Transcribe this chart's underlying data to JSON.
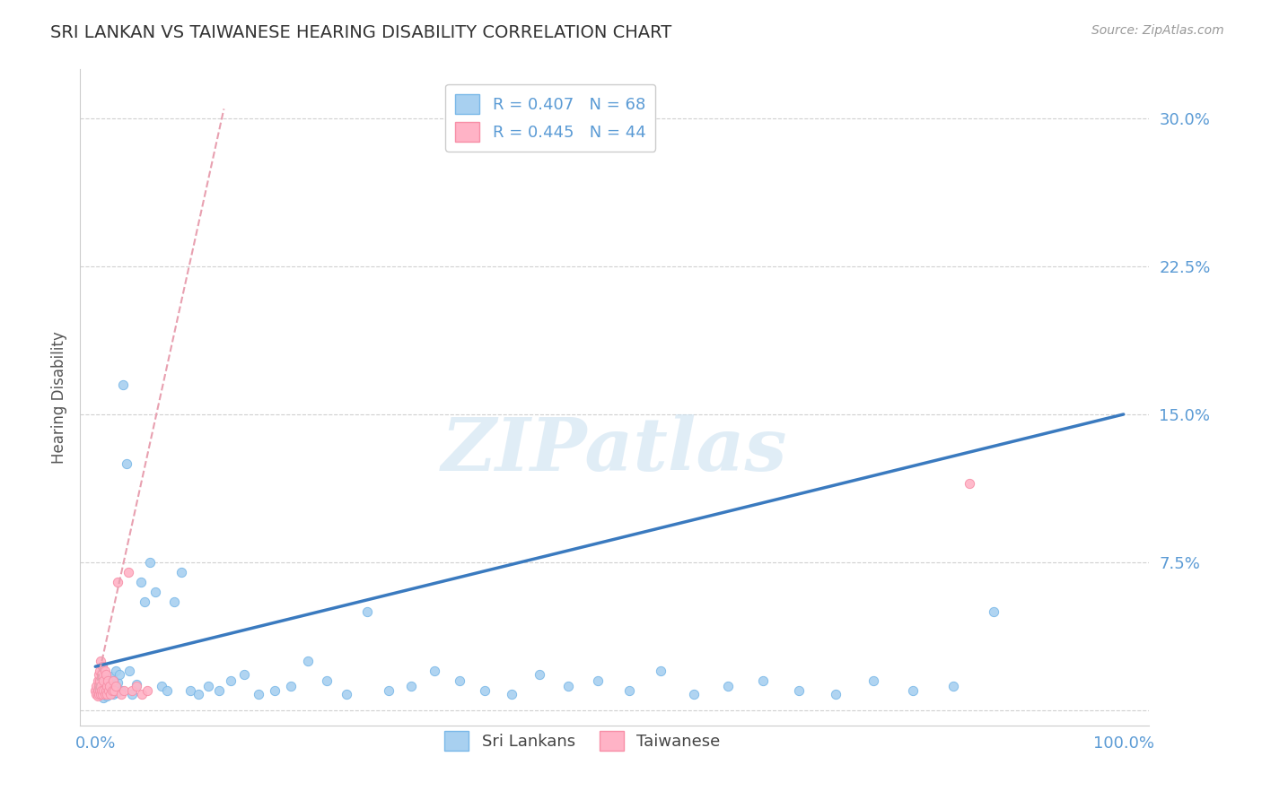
{
  "title": "SRI LANKAN VS TAIWANESE HEARING DISABILITY CORRELATION CHART",
  "source": "Source: ZipAtlas.com",
  "ylabel": "Hearing Disability",
  "legend_r1": "R = 0.407",
  "legend_n1": "N = 68",
  "legend_r2": "R = 0.445",
  "legend_n2": "N = 44",
  "color_blue_fill": "#a8d0f0",
  "color_blue_edge": "#7ab8e8",
  "color_pink_fill": "#ffb3c6",
  "color_pink_edge": "#f78fa7",
  "color_blue_line": "#3a7abf",
  "color_pink_line": "#e8a0b0",
  "color_axis_text": "#5b9bd5",
  "color_grid": "#d0d0d0",
  "color_title": "#333333",
  "color_source": "#999999",
  "color_watermark": "#c8dff0",
  "ytick_vals": [
    0.0,
    0.075,
    0.15,
    0.225,
    0.3
  ],
  "ytick_labels": [
    "",
    "7.5%",
    "15.0%",
    "22.5%",
    "30.0%"
  ],
  "ylim": [
    -0.008,
    0.325
  ],
  "xlim": [
    -0.015,
    1.025
  ],
  "blue_trend_x": [
    0.0,
    1.0
  ],
  "blue_trend_y": [
    0.022,
    0.15
  ],
  "pink_trend_x": [
    0.0,
    0.125
  ],
  "pink_trend_y": [
    0.01,
    0.305
  ],
  "sl_x": [
    0.003,
    0.004,
    0.005,
    0.006,
    0.007,
    0.008,
    0.009,
    0.01,
    0.011,
    0.012,
    0.013,
    0.014,
    0.015,
    0.016,
    0.017,
    0.018,
    0.019,
    0.02,
    0.021,
    0.022,
    0.023,
    0.025,
    0.027,
    0.03,
    0.033,
    0.036,
    0.04,
    0.044,
    0.048,
    0.053,
    0.058,
    0.064,
    0.07,
    0.077,
    0.084,
    0.092,
    0.1,
    0.11,
    0.12,
    0.132,
    0.145,
    0.159,
    0.174,
    0.19,
    0.207,
    0.225,
    0.244,
    0.264,
    0.285,
    0.307,
    0.33,
    0.354,
    0.379,
    0.405,
    0.432,
    0.46,
    0.489,
    0.519,
    0.55,
    0.582,
    0.615,
    0.649,
    0.684,
    0.72,
    0.757,
    0.795,
    0.834,
    0.874
  ],
  "sl_y": [
    0.01,
    0.015,
    0.008,
    0.012,
    0.018,
    0.006,
    0.014,
    0.01,
    0.007,
    0.016,
    0.009,
    0.013,
    0.011,
    0.017,
    0.008,
    0.015,
    0.012,
    0.02,
    0.009,
    0.014,
    0.018,
    0.01,
    0.165,
    0.125,
    0.02,
    0.008,
    0.013,
    0.065,
    0.055,
    0.075,
    0.06,
    0.012,
    0.01,
    0.055,
    0.07,
    0.01,
    0.008,
    0.012,
    0.01,
    0.015,
    0.018,
    0.008,
    0.01,
    0.012,
    0.025,
    0.015,
    0.008,
    0.05,
    0.01,
    0.012,
    0.02,
    0.015,
    0.01,
    0.008,
    0.018,
    0.012,
    0.015,
    0.01,
    0.02,
    0.008,
    0.012,
    0.015,
    0.01,
    0.008,
    0.015,
    0.01,
    0.012,
    0.05
  ],
  "tw_x": [
    0.0,
    0.001,
    0.001,
    0.002,
    0.002,
    0.002,
    0.003,
    0.003,
    0.003,
    0.004,
    0.004,
    0.004,
    0.005,
    0.005,
    0.005,
    0.006,
    0.006,
    0.007,
    0.007,
    0.008,
    0.008,
    0.009,
    0.009,
    0.01,
    0.01,
    0.011,
    0.011,
    0.012,
    0.013,
    0.014,
    0.015,
    0.016,
    0.017,
    0.018,
    0.02,
    0.022,
    0.025,
    0.028,
    0.032,
    0.036,
    0.04,
    0.045,
    0.05,
    0.85
  ],
  "tw_y": [
    0.01,
    0.008,
    0.012,
    0.015,
    0.01,
    0.007,
    0.018,
    0.012,
    0.008,
    0.02,
    0.015,
    0.01,
    0.025,
    0.012,
    0.008,
    0.018,
    0.01,
    0.022,
    0.008,
    0.015,
    0.01,
    0.02,
    0.008,
    0.018,
    0.01,
    0.012,
    0.008,
    0.015,
    0.01,
    0.012,
    0.008,
    0.01,
    0.015,
    0.01,
    0.012,
    0.065,
    0.008,
    0.01,
    0.07,
    0.01,
    0.012,
    0.008,
    0.01,
    0.115
  ]
}
